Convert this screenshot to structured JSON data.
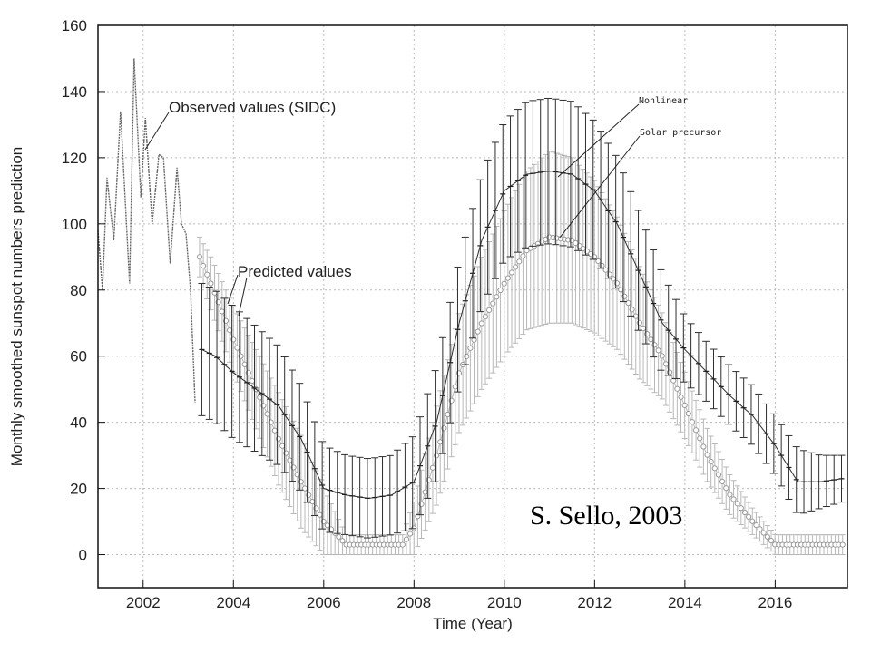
{
  "chart_data": {
    "type": "line",
    "xlabel": "Time (Year)",
    "ylabel": "Monthly smoothed sunspot numbers prediction",
    "xlim": [
      2001,
      2017.6
    ],
    "ylim": [
      -10,
      160
    ],
    "x_ticks": [
      2002,
      2004,
      2006,
      2008,
      2010,
      2012,
      2014,
      2016
    ],
    "y_ticks": [
      0,
      20,
      40,
      60,
      80,
      100,
      120,
      140,
      160
    ],
    "grid": true,
    "annotations": {
      "observed": "Observed values (SIDC)",
      "predicted": "Predicted values",
      "nonlinear": "Nonlinear",
      "precursor": "Solar precursor",
      "credit": "S. Sello, 2003"
    },
    "series": [
      {
        "name": "Observed values (SIDC)",
        "x": [
          2001.0,
          2001.1,
          2001.2,
          2001.35,
          2001.5,
          2001.7,
          2001.8,
          2001.95,
          2002.05,
          2002.2,
          2002.35,
          2002.45,
          2002.6,
          2002.75,
          2002.85,
          2002.95,
          2003.05,
          2003.15
        ],
        "y": [
          98,
          80,
          114,
          95,
          134,
          82,
          150,
          108,
          132,
          100,
          121,
          120,
          88,
          117,
          100,
          97,
          80,
          46
        ]
      },
      {
        "name": "Nonlinear",
        "x": [
          2003.3,
          2003.6,
          2004.0,
          2004.5,
          2005.0,
          2005.5,
          2006.0,
          2006.5,
          2007.0,
          2007.5,
          2008.0,
          2008.5,
          2009.0,
          2009.5,
          2010.0,
          2010.5,
          2011.0,
          2011.5,
          2012.0,
          2012.5,
          2013.0,
          2013.5,
          2014.0,
          2014.5,
          2015.0,
          2015.5,
          2016.0,
          2016.5,
          2017.0,
          2017.5
        ],
        "y": [
          62,
          60,
          55,
          50,
          45,
          35,
          20,
          18,
          17,
          18,
          22,
          40,
          70,
          95,
          110,
          115,
          116,
          115,
          110,
          100,
          85,
          70,
          62,
          55,
          48,
          42,
          33,
          22,
          22,
          23
        ],
        "err": [
          20,
          20,
          20,
          19,
          18,
          16,
          13,
          12,
          12,
          12,
          14,
          17,
          19,
          20,
          21,
          22,
          22,
          22,
          21,
          20,
          18,
          15,
          10,
          9,
          9,
          9,
          9,
          10,
          8,
          7
        ]
      },
      {
        "name": "Solar precursor",
        "x": [
          2003.25,
          2003.5,
          2004.0,
          2004.5,
          2005.0,
          2005.5,
          2006.0,
          2006.5,
          2007.0,
          2007.5,
          2007.75,
          2008.0,
          2008.5,
          2009.0,
          2009.5,
          2010.0,
          2010.5,
          2011.0,
          2011.5,
          2012.0,
          2012.5,
          2013.0,
          2013.5,
          2014.0,
          2014.5,
          2015.0,
          2015.5,
          2016.0,
          2016.5,
          2017.0,
          2017.5
        ],
        "y": [
          90,
          82,
          65,
          50,
          35,
          22,
          10,
          3,
          3,
          3,
          3,
          8,
          30,
          55,
          70,
          82,
          92,
          96,
          95,
          90,
          82,
          70,
          60,
          45,
          30,
          18,
          10,
          3,
          3,
          3,
          3
        ],
        "err": [
          6,
          8,
          10,
          12,
          14,
          14,
          10,
          3,
          3,
          3,
          3,
          8,
          15,
          18,
          20,
          22,
          24,
          26,
          25,
          23,
          20,
          17,
          13,
          10,
          8,
          6,
          4,
          3,
          3,
          3,
          3
        ]
      }
    ]
  }
}
